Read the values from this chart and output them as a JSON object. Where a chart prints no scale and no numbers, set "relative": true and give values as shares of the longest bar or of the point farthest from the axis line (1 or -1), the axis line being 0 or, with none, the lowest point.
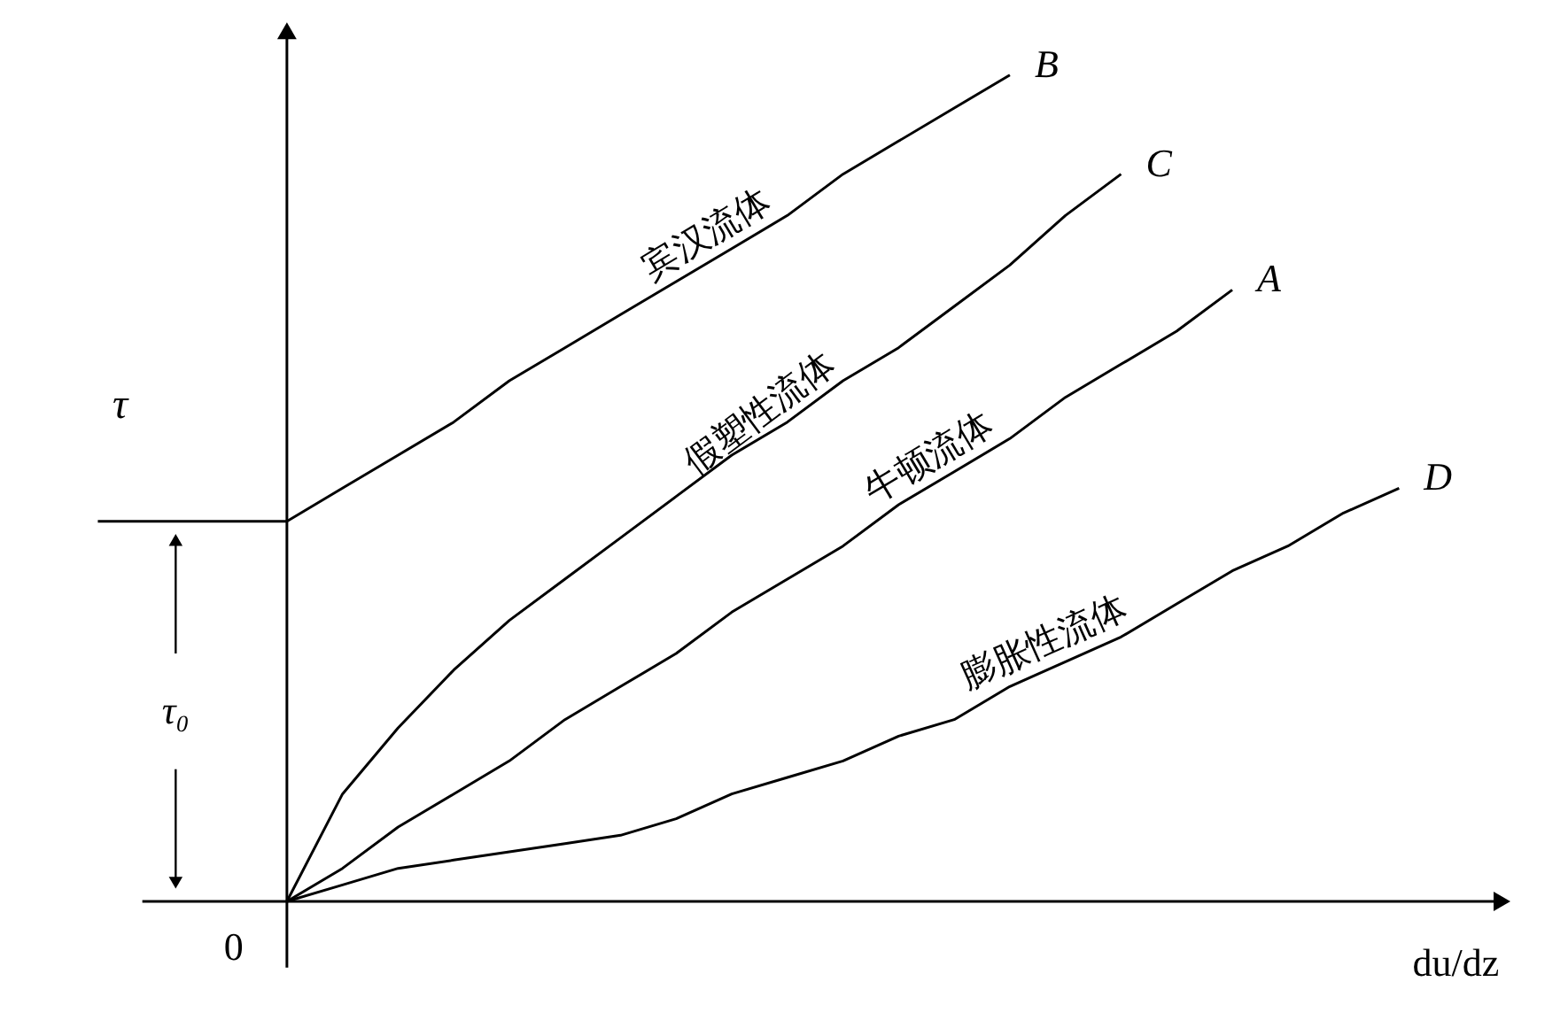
{
  "chart_data": {
    "type": "line",
    "relative": true,
    "xlabel": "du/dz",
    "ylabel": "τ",
    "categories": [
      null,
      null,
      null,
      null,
      null,
      null,
      null,
      null,
      null,
      null,
      null,
      null,
      null,
      null,
      null,
      null,
      null,
      null,
      null,
      null,
      null
    ],
    "series": [
      {
        "name": "B",
        "color": "#000000",
        "values": [
          0.46,
          0.5,
          0.54,
          0.58,
          0.63,
          0.67,
          0.71,
          0.75,
          0.79,
          0.83,
          0.88,
          0.92,
          0.96,
          1.0,
          null,
          null,
          null,
          null,
          null,
          null,
          null
        ]
      },
      {
        "name": "C",
        "color": "#000000",
        "values": [
          0,
          0.13,
          0.21,
          0.28,
          0.34,
          0.39,
          0.44,
          0.49,
          0.54,
          0.58,
          0.63,
          0.67,
          0.72,
          0.77,
          0.83,
          0.88,
          null,
          null,
          null,
          null,
          null
        ]
      },
      {
        "name": "A",
        "color": "#000000",
        "values": [
          0,
          0.04,
          0.09,
          0.13,
          0.17,
          0.22,
          0.26,
          0.3,
          0.35,
          0.39,
          0.43,
          0.48,
          0.52,
          0.56,
          0.61,
          0.65,
          0.69,
          0.74,
          null,
          null,
          null
        ]
      },
      {
        "name": "D",
        "color": "#000000",
        "values": [
          0,
          0.02,
          0.04,
          0.05,
          0.06,
          0.07,
          0.08,
          0.1,
          0.13,
          0.15,
          0.17,
          0.2,
          0.22,
          0.26,
          0.29,
          0.32,
          0.36,
          0.4,
          0.43,
          0.47,
          0.5
        ]
      }
    ],
    "annotations": [
      "宾汉流体",
      "假塑性流体",
      "牛顿流体",
      "膨胀性流体",
      "0",
      "τ₀"
    ]
  }
}
